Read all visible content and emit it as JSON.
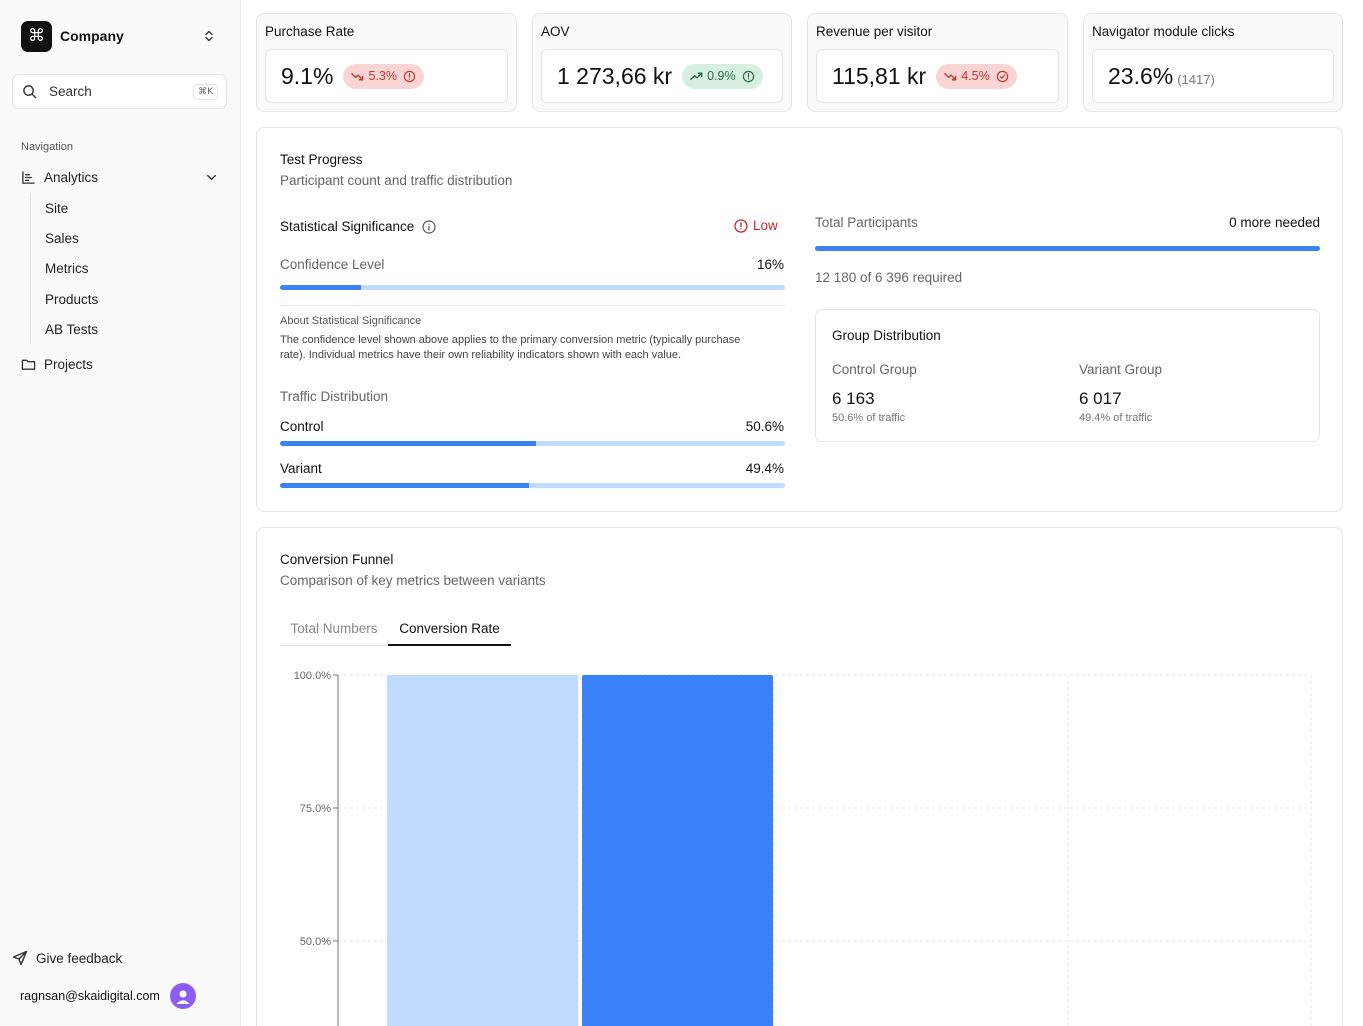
{
  "sidebar": {
    "company": "Company",
    "search_label": "Search",
    "search_shortcut": "⌘K",
    "nav_heading": "Navigation",
    "analytics_label": "Analytics",
    "sub_items": [
      "Site",
      "Sales",
      "Metrics",
      "Products",
      "AB Tests"
    ],
    "projects_label": "Projects",
    "feedback_label": "Give feedback",
    "user_email": "ragnsan@skaidigital.com"
  },
  "kpis": [
    {
      "title": "Purchase Rate",
      "value": "9.1%",
      "badge": "5.3%",
      "trend": "down",
      "status": "red",
      "badge_icon": "alert-circle-icon"
    },
    {
      "title": "AOV",
      "value": "1 273,66 kr",
      "badge": "0.9%",
      "trend": "up",
      "status": "green",
      "badge_icon": "alert-circle-icon"
    },
    {
      "title": "Revenue per visitor",
      "value": "115,81 kr",
      "badge": "4.5%",
      "trend": "down",
      "status": "red",
      "badge_icon": "check-circle-icon"
    },
    {
      "title": "Navigator module clicks",
      "value": "23.6%",
      "sub": "(1417)"
    }
  ],
  "test_progress": {
    "title": "Test Progress",
    "subtitle": "Participant count and traffic distribution",
    "significance_label": "Statistical Significance",
    "significance_status": "Low",
    "confidence_label": "Confidence Level",
    "confidence_value": "16%",
    "confidence_fraction": 0.16,
    "about_title": "About Statistical Significance",
    "about_text_1": "The confidence level shown above applies to the primary conversion metric (typically purchase",
    "about_text_2": "rate). Individual metrics have their own reliability indicators shown with each value.",
    "traffic_label": "Traffic Distribution",
    "control_label": "Control",
    "control_value": "50.6%",
    "control_fraction": 0.506,
    "variant_label": "Variant",
    "variant_value": "49.4%",
    "variant_fraction": 0.494,
    "participants_label": "Total Participants",
    "participants_needed": "0 more needed",
    "participants_fraction": 1.0,
    "participants_required": "12 180 of 6 396 required",
    "group_title": "Group Distribution",
    "control_group_label": "Control Group",
    "control_group_value": "6 163",
    "control_group_share": "50.6% of traffic",
    "variant_group_label": "Variant Group",
    "variant_group_value": "6 017",
    "variant_group_share": "49.4% of traffic"
  },
  "funnel": {
    "title": "Conversion Funnel",
    "subtitle": "Comparison of key metrics between variants",
    "tab_total": "Total Numbers",
    "tab_rate": "Conversion Rate"
  },
  "chart_data": {
    "type": "bar",
    "y_ticks": [
      "100.0%",
      "75.0%",
      "50.0%"
    ],
    "y_tick_values": [
      100,
      75,
      50
    ],
    "ylim": [
      25,
      100
    ],
    "grid": true,
    "series": [
      {
        "values": [
          100
        ],
        "color": "#bfdbfe"
      },
      {
        "values": [
          100
        ],
        "color": "#3b82f6"
      }
    ]
  }
}
